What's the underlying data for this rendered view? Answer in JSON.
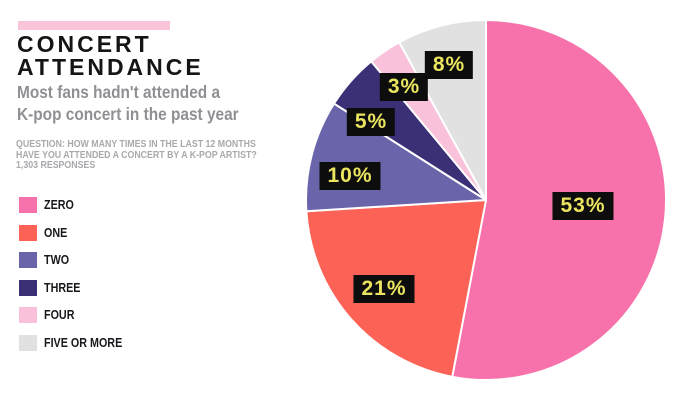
{
  "theme": {
    "accent_bar_color": "#f9c3d9",
    "background": "#ffffff",
    "title_color": "#151515",
    "subtitle_color": "#909094",
    "question_color": "#a9a9ad"
  },
  "header": {
    "title_line1": "CONCERT",
    "title_line2": "ATTENDANCE",
    "subtitle_line1": "Most fans hadn't attended a",
    "subtitle_line2": "K-pop concert in the past year",
    "question_line1": "QUESTION: HOW MANY TIMES IN THE LAST 12 MONTHS",
    "question_line2": "HAVE YOU ATTENDED A CONCERT BY A K-POP ARTIST?",
    "question_line3": "1,303 RESPONSES"
  },
  "chart_data": {
    "type": "pie",
    "title": "CONCERT ATTENDANCE",
    "subtitle": "Most fans hadn't attended a K-pop concert in the past year",
    "categories": [
      "ZERO",
      "ONE",
      "TWO",
      "THREE",
      "FOUR",
      "FIVE OR MORE"
    ],
    "values": [
      53,
      21,
      10,
      5,
      3,
      8
    ],
    "unit": "%",
    "data_labels": [
      "53%",
      "21%",
      "10%",
      "5%",
      "3%",
      "8%"
    ],
    "colors": [
      "#f772ab",
      "#fc6255",
      "#6a65ab",
      "#3b2f75",
      "#f9c2da",
      "#e1e1e2"
    ],
    "start_angle_deg": 0,
    "direction": "clockwise",
    "legend_position": "left",
    "data_label_bg": "#0d0d0d",
    "data_label_color": "#eae45f"
  }
}
